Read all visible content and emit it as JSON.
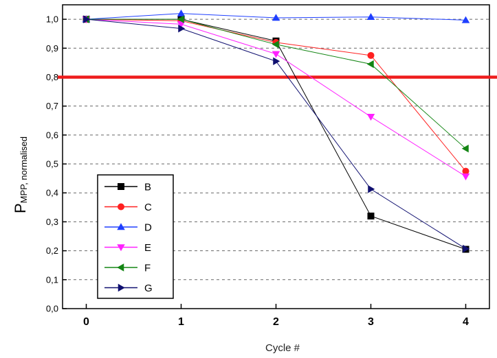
{
  "chart_data": {
    "type": "line",
    "x": [
      0,
      1,
      2,
      3,
      4
    ],
    "xlim": [
      -0.25,
      4.25
    ],
    "ylim": [
      0.0,
      1.05
    ],
    "xticks": [
      "0",
      "1",
      "2",
      "3",
      "4"
    ],
    "yticks": [
      "0,0",
      "0,1",
      "0,2",
      "0,3",
      "0,4",
      "0,5",
      "0,6",
      "0,7",
      "0,8",
      "0,9",
      "1,0"
    ],
    "xlabel": "Cycle #",
    "ylabel_main": "P",
    "ylabel_sub": "MPP, normalised",
    "grid": "horizontal dashed",
    "legend_position": "bottom-left",
    "threshold": {
      "y": 0.8,
      "color": "#ee1c1c"
    },
    "series": [
      {
        "name": "B",
        "color": "#000000",
        "marker": "square",
        "values": [
          1.0,
          1.0,
          0.925,
          0.32,
          0.205
        ]
      },
      {
        "name": "C",
        "color": "#ff2020",
        "marker": "circle",
        "values": [
          1.0,
          0.995,
          0.92,
          0.875,
          0.475
        ]
      },
      {
        "name": "D",
        "color": "#1f3fff",
        "marker": "triangle-up",
        "values": [
          1.0,
          1.02,
          1.005,
          1.008,
          0.997
        ]
      },
      {
        "name": "E",
        "color": "#ff20ff",
        "marker": "triangle-down",
        "values": [
          1.0,
          0.983,
          0.88,
          0.663,
          0.457
        ]
      },
      {
        "name": "F",
        "color": "#138513",
        "marker": "triangle-left",
        "values": [
          1.0,
          1.0,
          0.913,
          0.845,
          0.553
        ]
      },
      {
        "name": "G",
        "color": "#101070",
        "marker": "triangle-right",
        "values": [
          1.0,
          0.968,
          0.855,
          0.413,
          0.207
        ]
      }
    ]
  }
}
